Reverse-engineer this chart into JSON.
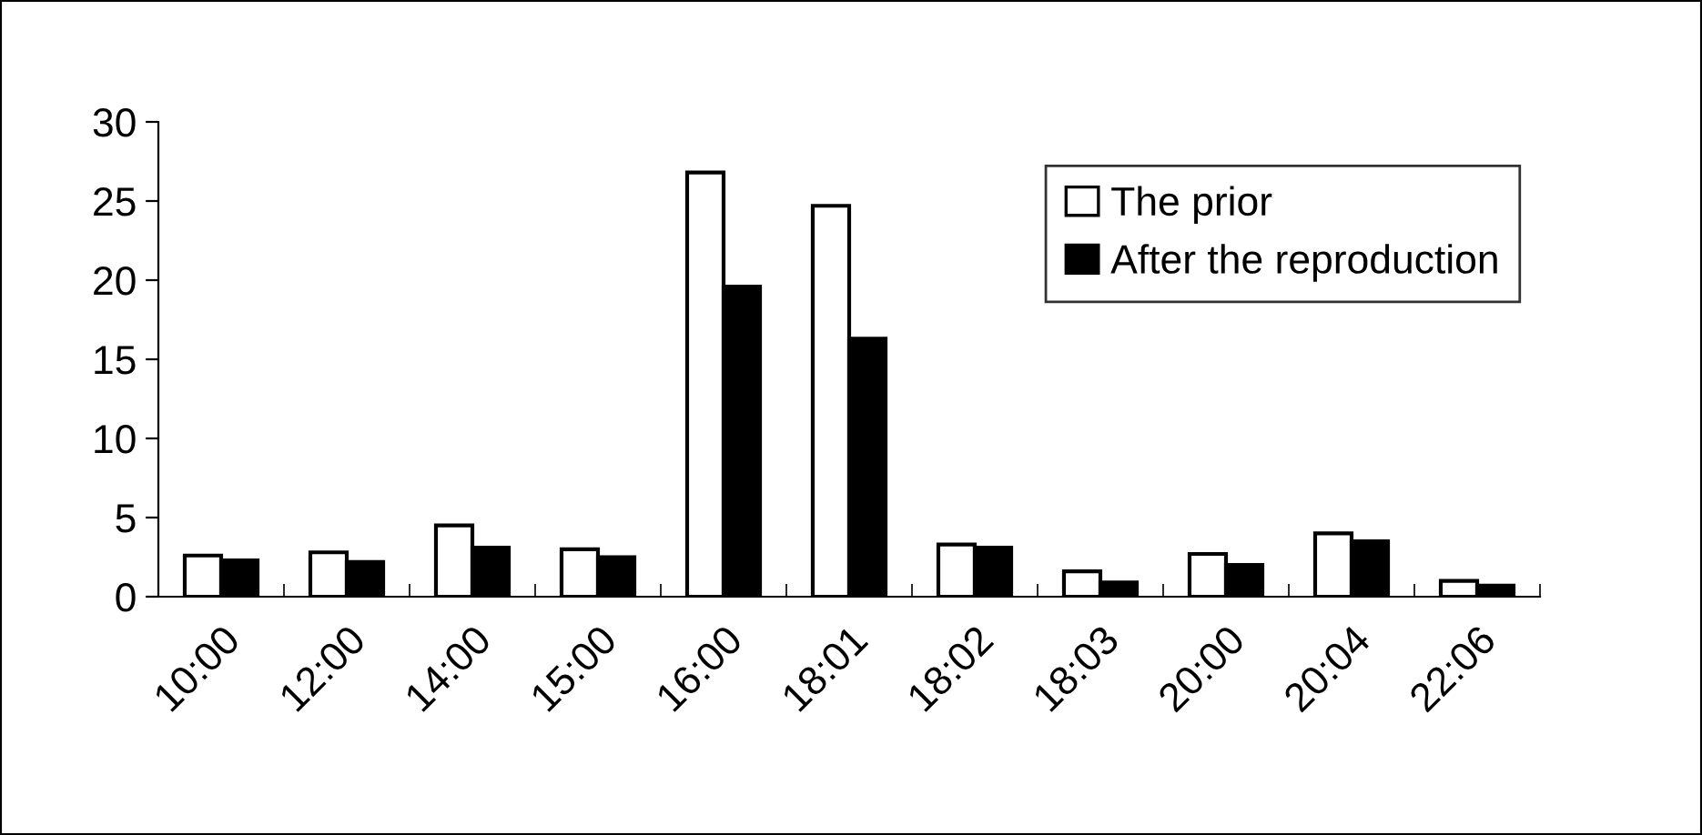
{
  "chart_data": {
    "type": "bar",
    "categories": [
      "10:00",
      "12:00",
      "14:00",
      "15:00",
      "16:00",
      "18:01",
      "18:02",
      "18:03",
      "20:00",
      "20:04",
      "22:06"
    ],
    "series": [
      {
        "name": "The prior",
        "color": "#ffffff",
        "values": [
          2.6,
          2.8,
          4.5,
          3.0,
          26.8,
          24.7,
          3.3,
          1.6,
          2.7,
          4.0,
          1.0
        ]
      },
      {
        "name": "After the reproduction",
        "color": "#000000",
        "values": [
          2.3,
          2.2,
          3.1,
          2.5,
          19.6,
          16.3,
          3.1,
          0.9,
          2.0,
          3.5,
          0.7
        ]
      }
    ],
    "ylim": [
      0,
      30
    ],
    "yticks": [
      0,
      5,
      10,
      15,
      20,
      25,
      30
    ],
    "grid": false,
    "legend": "top right"
  }
}
